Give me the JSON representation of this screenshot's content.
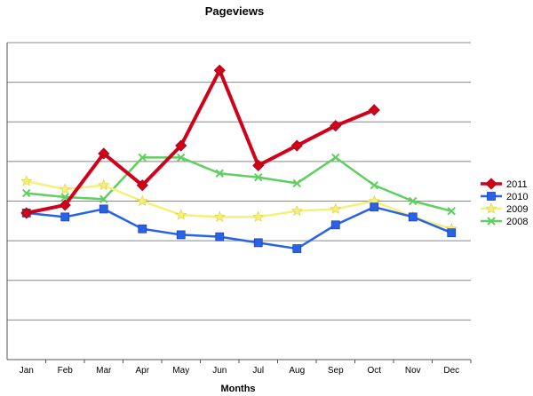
{
  "chart_data": {
    "type": "line",
    "title": "Pageviews",
    "xlabel": "Months",
    "ylabel": "",
    "categories": [
      "Jan",
      "Feb",
      "Mar",
      "Apr",
      "May",
      "Jun",
      "Jul",
      "Aug",
      "Sep",
      "Oct",
      "Nov",
      "Dec"
    ],
    "ylim": [
      0,
      8
    ],
    "grid": true,
    "legend_position": "right",
    "series": [
      {
        "name": "2011",
        "color": "#d0021b",
        "marker": "diamond",
        "values": [
          3.7,
          3.9,
          5.2,
          4.4,
          5.4,
          7.3,
          4.9,
          5.4,
          5.9,
          6.3,
          null,
          null
        ]
      },
      {
        "name": "2010",
        "color": "#2962e8",
        "marker": "square",
        "values": [
          3.7,
          3.6,
          3.8,
          3.3,
          3.15,
          3.1,
          2.95,
          2.8,
          3.4,
          3.85,
          3.6,
          3.2
        ]
      },
      {
        "name": "2009",
        "color": "#f5f07a",
        "marker": "star",
        "values": [
          4.5,
          4.3,
          4.4,
          4.0,
          3.65,
          3.6,
          3.6,
          3.75,
          3.8,
          4.0,
          3.6,
          3.3
        ]
      },
      {
        "name": "2008",
        "color": "#5fcf5f",
        "marker": "cross",
        "values": [
          4.2,
          4.1,
          4.05,
          5.1,
          5.1,
          4.7,
          4.6,
          4.45,
          5.1,
          4.4,
          4.0,
          3.75
        ]
      }
    ]
  }
}
